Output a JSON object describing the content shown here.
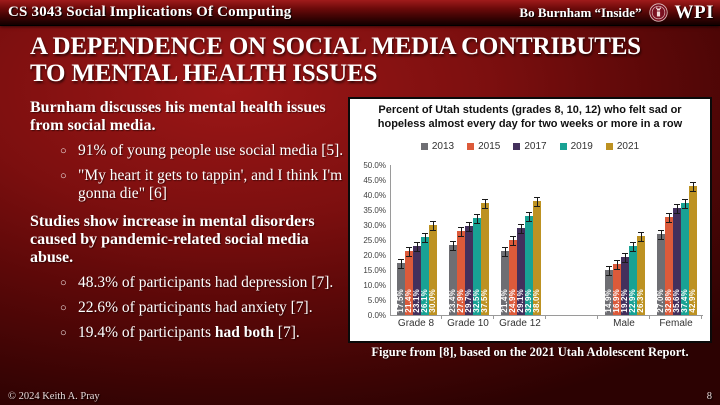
{
  "header": {
    "course": "CS 3043 Social Implications Of Computing",
    "topic": "Bo Burnham “Inside”",
    "logo_text": "WPI"
  },
  "title": {
    "line1": "A DEPENDENCE ON SOCIAL MEDIA CONTRIBUTES",
    "line2": "TO MENTAL HEALTH ISSUES"
  },
  "left": {
    "bullet_glyph": "○",
    "sections": [
      {
        "heading": "Burnham discusses his mental health issues from social media.",
        "bullets": [
          {
            "segments": [
              {
                "t": "91% of young people use social media [5]."
              }
            ]
          },
          {
            "segments": [
              {
                "t": "\"My heart it gets to tappin', and I think I'm gonna die\" [6]"
              }
            ]
          }
        ]
      },
      {
        "heading": "Studies show increase in mental disorders caused by pandemic-related social media abuse.",
        "bullets": [
          {
            "segments": [
              {
                "t": "48.3% of participants had depression [7]."
              }
            ]
          },
          {
            "segments": [
              {
                "t": "22.6% of participants had anxiety [7]."
              }
            ]
          },
          {
            "segments": [
              {
                "t": "19.4% of participants "
              },
              {
                "t": "had both",
                "b": true
              },
              {
                "t": " [7]."
              }
            ]
          }
        ]
      }
    ]
  },
  "chart_caption": "Figure from [8], based on the 2021 Utah Adolescent Report.",
  "footer": {
    "copyright": "© 2024 Keith A. Pray",
    "page": "8"
  },
  "chart_data": {
    "type": "bar",
    "title": "Percent of Utah students (grades 8, 10, 12) who felt sad or hopeless almost every day for two weeks or more in a row",
    "categories": [
      "Grade 8",
      "Grade 10",
      "Grade 12",
      "Male",
      "Female"
    ],
    "gap_after": "Grade 12",
    "series": [
      {
        "name": "2013",
        "color": "#6e6e73",
        "values": [
          17.5,
          23.4,
          21.4,
          14.9,
          27.0
        ]
      },
      {
        "name": "2015",
        "color": "#dc5a3a",
        "values": [
          21.4,
          27.9,
          24.9,
          16.9,
          32.8
        ]
      },
      {
        "name": "2017",
        "color": "#43305c",
        "values": [
          23.1,
          29.7,
          29.1,
          19.2,
          35.6
        ]
      },
      {
        "name": "2019",
        "color": "#18a294",
        "values": [
          26.1,
          32.5,
          32.9,
          22.9,
          37.4
        ]
      },
      {
        "name": "2021",
        "color": "#bd9222",
        "values": [
          30.0,
          37.5,
          38.0,
          26.3,
          42.9
        ]
      }
    ],
    "ylim": [
      0,
      50
    ],
    "ytick_step": 5,
    "ytick_format": "percent1",
    "error_bars": true,
    "data_labels": "rotated-percent",
    "legend_position": "top",
    "grid": false
  }
}
